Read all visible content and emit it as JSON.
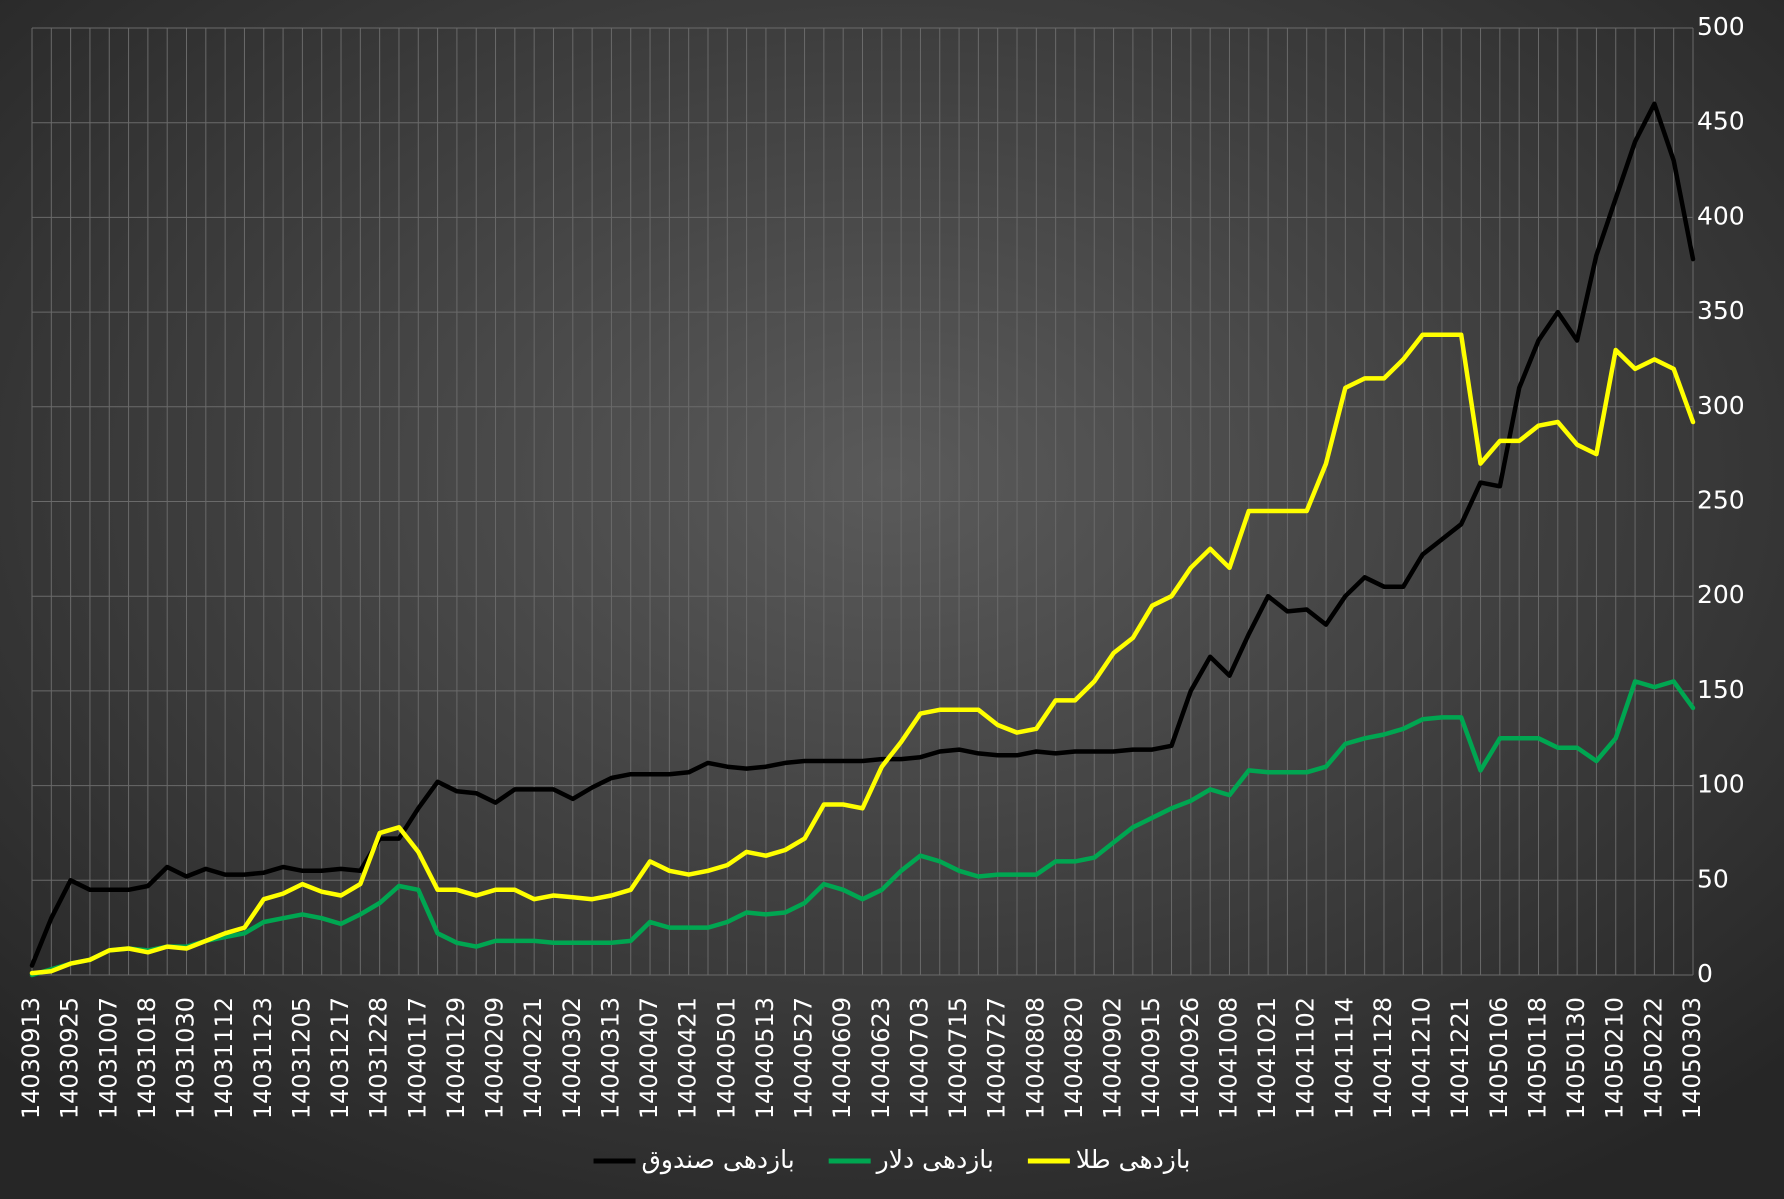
{
  "chart_data": {
    "type": "line",
    "categories": [
      "14030913",
      null,
      "14030925",
      null,
      "14031007",
      null,
      "14031018",
      null,
      "14031030",
      null,
      "14031112",
      null,
      "14031123",
      null,
      "14031205",
      null,
      "14031217",
      null,
      "14031228",
      null,
      "14040117",
      null,
      "14040129",
      null,
      "14040209",
      null,
      "14040221",
      null,
      "14040302",
      null,
      "14040313",
      null,
      "14040407",
      null,
      "14040421",
      null,
      "14040501",
      null,
      "14040513",
      null,
      "14040527",
      null,
      "14040609",
      null,
      "14040623",
      null,
      "14040703",
      null,
      "14040715",
      null,
      "14040727",
      null,
      "14040808",
      null,
      "14040820",
      null,
      "14040902",
      null,
      "14040915",
      null,
      "14040926",
      null,
      "14041008",
      null,
      "14041021",
      null,
      "14041102",
      null,
      "14041114",
      null,
      "14041128",
      null,
      "14041210",
      null,
      "14041221",
      null,
      "14050106",
      null,
      "14050118",
      null,
      "14050130",
      null,
      "14050210",
      null,
      "14050222",
      null,
      "14050303"
    ],
    "series": [
      {
        "name": "بازدهی صندوق",
        "color": "#000000",
        "values": [
          5,
          30,
          50,
          45,
          45,
          45,
          47,
          57,
          52,
          56,
          53,
          53,
          54,
          57,
          55,
          55,
          56,
          55,
          72,
          72,
          88,
          102,
          97,
          96,
          91,
          98,
          98,
          98,
          93,
          99,
          104,
          106,
          106,
          106,
          107,
          112,
          110,
          109,
          110,
          112,
          113,
          113,
          113,
          113,
          114,
          114,
          115,
          118,
          119,
          117,
          116,
          116,
          118,
          117,
          118,
          118,
          118,
          119,
          119,
          121,
          150,
          168,
          158,
          180,
          200,
          192,
          193,
          185,
          200,
          210,
          205,
          205,
          222,
          230,
          238,
          260,
          258,
          310,
          335,
          350,
          335,
          380,
          410,
          440,
          460,
          430,
          378
        ]
      },
      {
        "name": "بازدهی دلار",
        "color": "#00a651",
        "values": [
          0,
          3,
          6,
          8,
          13,
          14,
          13,
          15,
          15,
          18,
          20,
          22,
          28,
          30,
          32,
          30,
          27,
          32,
          38,
          47,
          45,
          22,
          17,
          15,
          18,
          18,
          18,
          17,
          17,
          17,
          17,
          18,
          28,
          25,
          25,
          25,
          28,
          33,
          32,
          33,
          38,
          48,
          45,
          40,
          45,
          55,
          63,
          60,
          55,
          52,
          53,
          53,
          53,
          60,
          60,
          62,
          70,
          78,
          83,
          88,
          92,
          98,
          95,
          108,
          107,
          107,
          107,
          110,
          122,
          125,
          127,
          130,
          135,
          136,
          136,
          108,
          125,
          125,
          125,
          120,
          120,
          113,
          125,
          155,
          152,
          155,
          141
        ]
      },
      {
        "name": "بازدهی طلا",
        "color": "#ffff00",
        "values": [
          1,
          2,
          6,
          8,
          13,
          14,
          12,
          15,
          14,
          18,
          22,
          25,
          40,
          43,
          48,
          44,
          42,
          48,
          75,
          78,
          65,
          45,
          45,
          42,
          45,
          45,
          40,
          42,
          41,
          40,
          42,
          45,
          60,
          55,
          53,
          55,
          58,
          65,
          63,
          66,
          72,
          90,
          90,
          88,
          110,
          123,
          138,
          140,
          140,
          140,
          132,
          128,
          130,
          145,
          145,
          155,
          170,
          178,
          195,
          200,
          215,
          225,
          215,
          245,
          245,
          245,
          245,
          270,
          310,
          315,
          315,
          325,
          338,
          338,
          338,
          270,
          282,
          282,
          290,
          292,
          280,
          275,
          330,
          320,
          325,
          320,
          292
        ]
      }
    ],
    "ylim": [
      0,
      500
    ],
    "yticks": [
      0,
      50,
      100,
      150,
      200,
      250,
      300,
      350,
      400,
      450,
      500
    ],
    "grid": true,
    "legend": "bottom"
  }
}
